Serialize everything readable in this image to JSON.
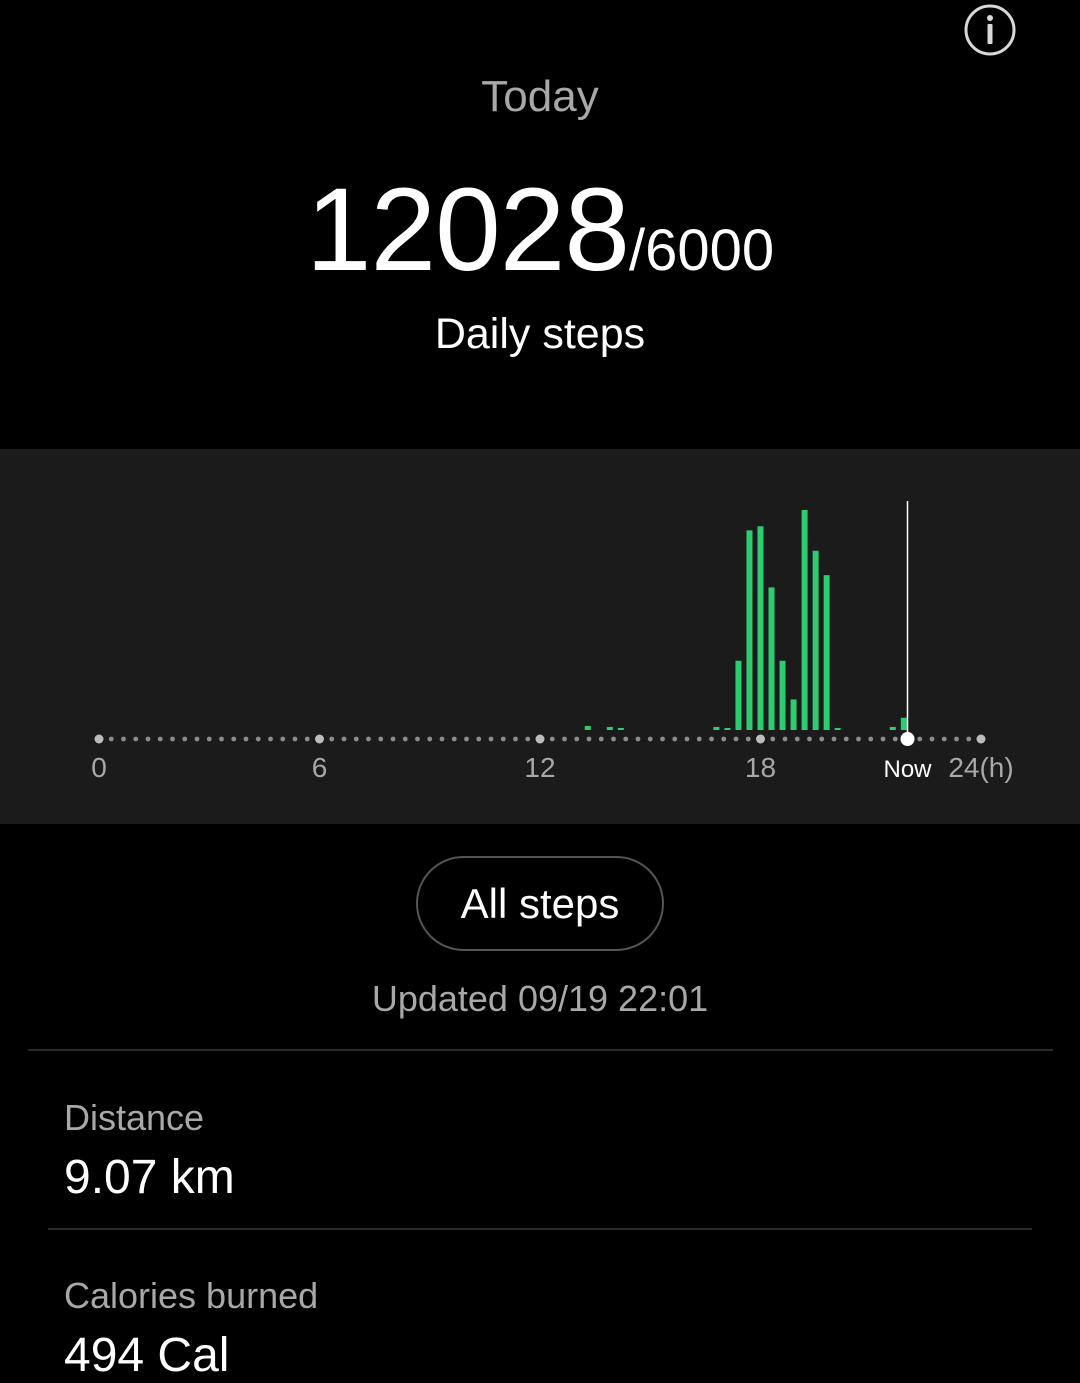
{
  "header": {
    "title": "Today",
    "info_icon": "info-icon"
  },
  "summary": {
    "steps": "12028",
    "goal": "/6000",
    "label": "Daily steps"
  },
  "chart_data": {
    "type": "bar",
    "x_ticks": [
      "0",
      "6",
      "12",
      "18",
      "Now",
      "24(h)"
    ],
    "x_unit": "h",
    "xlim": [
      0,
      24
    ],
    "now_hour": 22,
    "bar_color": "#2ecc71",
    "series": [
      {
        "x": [
          13.3,
          13.9,
          14.2,
          16.8,
          17.1,
          17.4,
          17.7,
          18.0,
          18.3,
          18.6,
          18.9,
          19.2,
          19.5,
          19.8,
          20.1,
          21.6,
          21.9
        ],
        "values": [
          4,
          3,
          2,
          3,
          2,
          68,
          196,
          200,
          140,
          68,
          30,
          216,
          176,
          152,
          2,
          3,
          12
        ]
      }
    ]
  },
  "actions": {
    "all_steps_label": "All steps"
  },
  "updated": "Updated 09/19 22:01",
  "stats": [
    {
      "label": "Distance",
      "value": "9.07 km"
    },
    {
      "label": "Calories burned",
      "value": "494 Cal"
    }
  ],
  "colors": {
    "background": "#000000",
    "panel": "#1b1b1b",
    "accent": "#2ecc71",
    "muted_text": "#a8a8a8"
  }
}
